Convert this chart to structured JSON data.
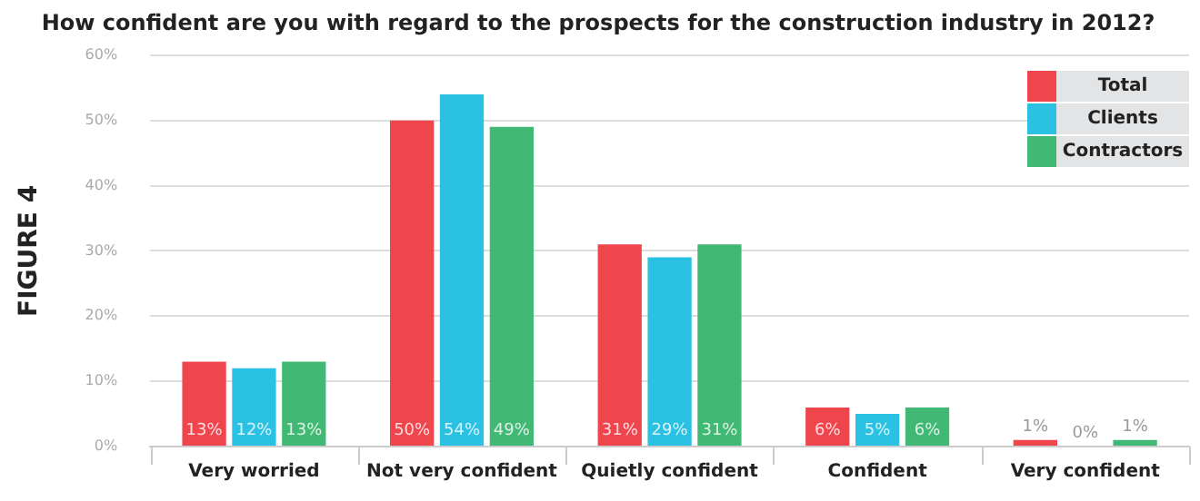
{
  "chart_data": {
    "type": "bar",
    "title": "How confident are you with regard to the prospects for the construction industry in 2012?",
    "ylabel": "FIGURE 4",
    "categories": [
      "Very worried",
      "Not very confident",
      "Quietly confident",
      "Confident",
      "Very confident"
    ],
    "series": [
      {
        "name": "Total",
        "color": "#ef464d",
        "values": [
          13,
          50,
          31,
          6,
          1
        ],
        "value_labels": [
          "13%",
          "50%",
          "31%",
          "6%",
          "1%"
        ]
      },
      {
        "name": "Clients",
        "color": "#2bc1e3",
        "values": [
          12,
          54,
          29,
          5,
          0
        ],
        "value_labels": [
          "12%",
          "54%",
          "29%",
          "5%",
          "0%"
        ]
      },
      {
        "name": "Contractors",
        "color": "#41b874",
        "values": [
          13,
          49,
          31,
          6,
          1
        ],
        "value_labels": [
          "13%",
          "49%",
          "31%",
          "6%",
          "1%"
        ]
      }
    ],
    "ylim": [
      0,
      60
    ],
    "yticks": [
      {
        "value": 0,
        "label": "0%"
      },
      {
        "value": 10,
        "label": "10%"
      },
      {
        "value": 20,
        "label": "20%"
      },
      {
        "value": 30,
        "label": "30%"
      },
      {
        "value": 40,
        "label": "40%"
      },
      {
        "value": 50,
        "label": "50%"
      },
      {
        "value": 60,
        "label": "60%"
      }
    ],
    "grid": "y",
    "legend": "top right"
  }
}
